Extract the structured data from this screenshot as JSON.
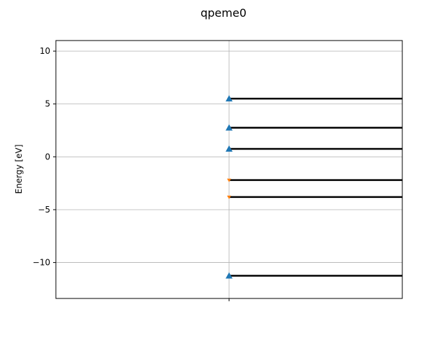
{
  "chart_data": {
    "type": "scatter",
    "title": "qpeme0",
    "xlabel": "",
    "ylabel": "Energy [eV]",
    "ylim": [
      -13.4,
      11.0
    ],
    "xlim": [
      -1,
      1
    ],
    "yticks": [
      10,
      5,
      0,
      -5,
      -10
    ],
    "ytick_labels": [
      "10",
      "5",
      "0",
      "−5",
      "−10"
    ],
    "xticks": [
      0
    ],
    "xtick_labels": [
      ""
    ],
    "grid": true,
    "series": [
      {
        "marker": "triangle-up",
        "color": "#1f77b4",
        "x": [
          0,
          0,
          0,
          0
        ],
        "y": [
          5.5,
          2.75,
          0.75,
          -11.25
        ]
      },
      {
        "marker": "triangle-down",
        "color": "#ff7f0e",
        "x": [
          0,
          0
        ],
        "y": [
          -2.2,
          -3.8
        ]
      }
    ],
    "levels": {
      "color": "#000000",
      "x_start": 0,
      "x_end": 1,
      "y": [
        5.5,
        2.75,
        0.75,
        -2.2,
        -3.8,
        -11.25
      ]
    }
  }
}
